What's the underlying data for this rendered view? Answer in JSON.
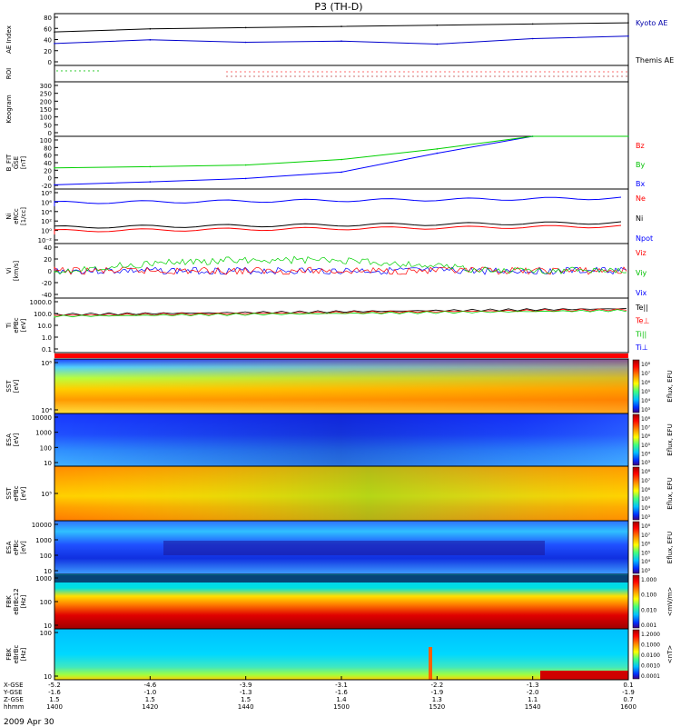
{
  "title": "P3 (TH-D)",
  "date_label": "2009 Apr 30",
  "colors": {
    "blue": "#0000ff",
    "red": "#ff0000",
    "green": "#00e000",
    "black": "#000000"
  },
  "panels": [
    {
      "id": "ae",
      "ylabel": [
        "AE Index"
      ],
      "ticks": [
        "80",
        "60",
        "40",
        "20",
        "0"
      ],
      "legend": [
        {
          "text": "Kyoto AE",
          "color": "#0000aa"
        },
        {
          "text": "Themis AE",
          "color": "#000000"
        }
      ]
    },
    {
      "id": "roi",
      "ylabel": [
        "ROI"
      ],
      "ticks": [],
      "legend": []
    },
    {
      "id": "keogram",
      "ylabel": [
        "Keogram"
      ],
      "ticks": [
        "300",
        "250",
        "200",
        "150",
        "100",
        "50",
        "0"
      ],
      "legend": []
    },
    {
      "id": "bfit",
      "ylabel": [
        "B_FIT",
        "GSE",
        "[nT]"
      ],
      "ticks": [
        "100",
        "80",
        "60",
        "40",
        "20",
        "0",
        "-20"
      ],
      "legend": [
        {
          "text": "Bz",
          "color": "#ff0000"
        },
        {
          "text": "By",
          "color": "#00c000"
        },
        {
          "text": "Bx",
          "color": "#0000ff"
        }
      ]
    },
    {
      "id": "ni",
      "ylabel": [
        "Ni",
        "eRCc",
        "[1/cc]"
      ],
      "ticks": [
        "10⁸",
        "10⁶",
        "10⁴",
        "10²",
        "10⁰",
        "10⁻²"
      ],
      "legend": [
        {
          "text": "Ne",
          "color": "#ff0000"
        },
        {
          "text": "Ni",
          "color": "#000000"
        },
        {
          "text": "Npot",
          "color": "#0000ff"
        }
      ]
    },
    {
      "id": "vi",
      "ylabel": [
        "Vi",
        "[km/s]"
      ],
      "ticks": [
        "40",
        "20",
        "0",
        "-20",
        "-40"
      ],
      "legend": [
        {
          "text": "Viz",
          "color": "#ff0000"
        },
        {
          "text": "Viy",
          "color": "#00c000"
        },
        {
          "text": "Vix",
          "color": "#0000ff"
        }
      ]
    },
    {
      "id": "ti",
      "ylabel": [
        "Ti",
        "ePBc",
        "[eV]"
      ],
      "ticks": [
        "1000.0",
        "100.0",
        "10.0",
        "1.0",
        "0.1"
      ],
      "legend": [
        {
          "text": "Te||",
          "color": "#000000"
        },
        {
          "text": "Te⊥",
          "color": "#ff0000"
        },
        {
          "text": "Ti||",
          "color": "#00c000"
        },
        {
          "text": "Ti⊥",
          "color": "#0000ff"
        }
      ]
    },
    {
      "id": "sst1",
      "ylabel": [
        "SST",
        "[eV]"
      ],
      "ticks": [
        "10⁶",
        "10⁴"
      ],
      "legend": []
    },
    {
      "id": "esa1",
      "ylabel": [
        "ESA",
        "[eV]"
      ],
      "ticks": [
        "10000",
        "1000",
        "100",
        "10"
      ],
      "legend": []
    },
    {
      "id": "sst2",
      "ylabel": [
        "SST",
        "ePBc",
        "[eV]"
      ],
      "ticks": [
        "10⁵"
      ],
      "legend": []
    },
    {
      "id": "esa2",
      "ylabel": [
        "ESA",
        "ePBc",
        "[eV]"
      ],
      "ticks": [
        "10000",
        "1000",
        "100",
        "10"
      ],
      "legend": []
    },
    {
      "id": "fbk1",
      "ylabel": [
        "FBK",
        "eBrBc12",
        "[Hz]"
      ],
      "ticks": [
        "1000",
        "100",
        "10"
      ],
      "legend": []
    },
    {
      "id": "fbk2",
      "ylabel": [
        "FBK",
        "eBrBc",
        "[Hz]"
      ],
      "ticks": [
        "100",
        "10"
      ],
      "legend": []
    }
  ],
  "colorbars": [
    {
      "label": "Eflux, EFU",
      "ticks": [
        "10⁸",
        "10⁷",
        "10⁶",
        "10⁵",
        "10⁴",
        "10³"
      ]
    },
    {
      "label": "Eflux, EFU",
      "ticks": [
        "10⁸",
        "10⁷",
        "10⁶",
        "10⁵",
        "10⁴",
        "10³"
      ]
    },
    {
      "label": "Eflux, EFU",
      "ticks": [
        "10⁸",
        "10⁷",
        "10⁶",
        "10⁵",
        "10⁴",
        "10³"
      ]
    },
    {
      "label": "Eflux, EFU",
      "ticks": [
        "10⁸",
        "10⁷",
        "10⁶",
        "10⁵",
        "10⁴",
        "10³"
      ]
    },
    {
      "label": "<mV/m>",
      "ticks": [
        "1.000",
        "0.100",
        "0.010",
        "0.001"
      ]
    },
    {
      "label": "<nT>",
      "ticks": [
        "1.2000",
        "0.1000",
        "0.0100",
        "0.0010",
        "0.0001"
      ]
    }
  ],
  "xaxis": {
    "row_labels": [
      "X-GSE",
      "Y-GSE",
      "Z-GSE",
      "hhmm"
    ],
    "ticks": [
      {
        "x": "-5.2",
        "y": "-1.6",
        "z": "1.5",
        "t": "1400"
      },
      {
        "x": "-4.6",
        "y": "-1.0",
        "z": "1.5",
        "t": "1420"
      },
      {
        "x": "-3.9",
        "y": "-1.3",
        "z": "1.5",
        "t": "1440"
      },
      {
        "x": "-3.1",
        "y": "-1.6",
        "z": "1.4",
        "t": "1500"
      },
      {
        "x": "-2.2",
        "y": "-1.9",
        "z": "1.3",
        "t": "1520"
      },
      {
        "x": "-1.3",
        "y": "-2.0",
        "z": "1.1",
        "t": "1540"
      },
      {
        "x": "0.1",
        "y": "-1.9",
        "z": "0.7",
        "t": "1600"
      }
    ]
  },
  "chart_data": {
    "type": "line",
    "x_unit": "hhmm",
    "x": [
      "1400",
      "1420",
      "1440",
      "1500",
      "1520",
      "1540",
      "1600"
    ],
    "series": [
      {
        "name": "Kyoto AE",
        "values": [
          36,
          42,
          38,
          40,
          35,
          44,
          48
        ]
      },
      {
        "name": "Themis AE",
        "values": [
          55,
          60,
          62,
          64,
          66,
          68,
          70
        ]
      },
      {
        "name": "Bx",
        "values": [
          -15,
          -8,
          0,
          15,
          60,
          100,
          100
        ]
      },
      {
        "name": "By",
        "values": [
          25,
          28,
          32,
          45,
          70,
          100,
          100
        ]
      }
    ]
  }
}
